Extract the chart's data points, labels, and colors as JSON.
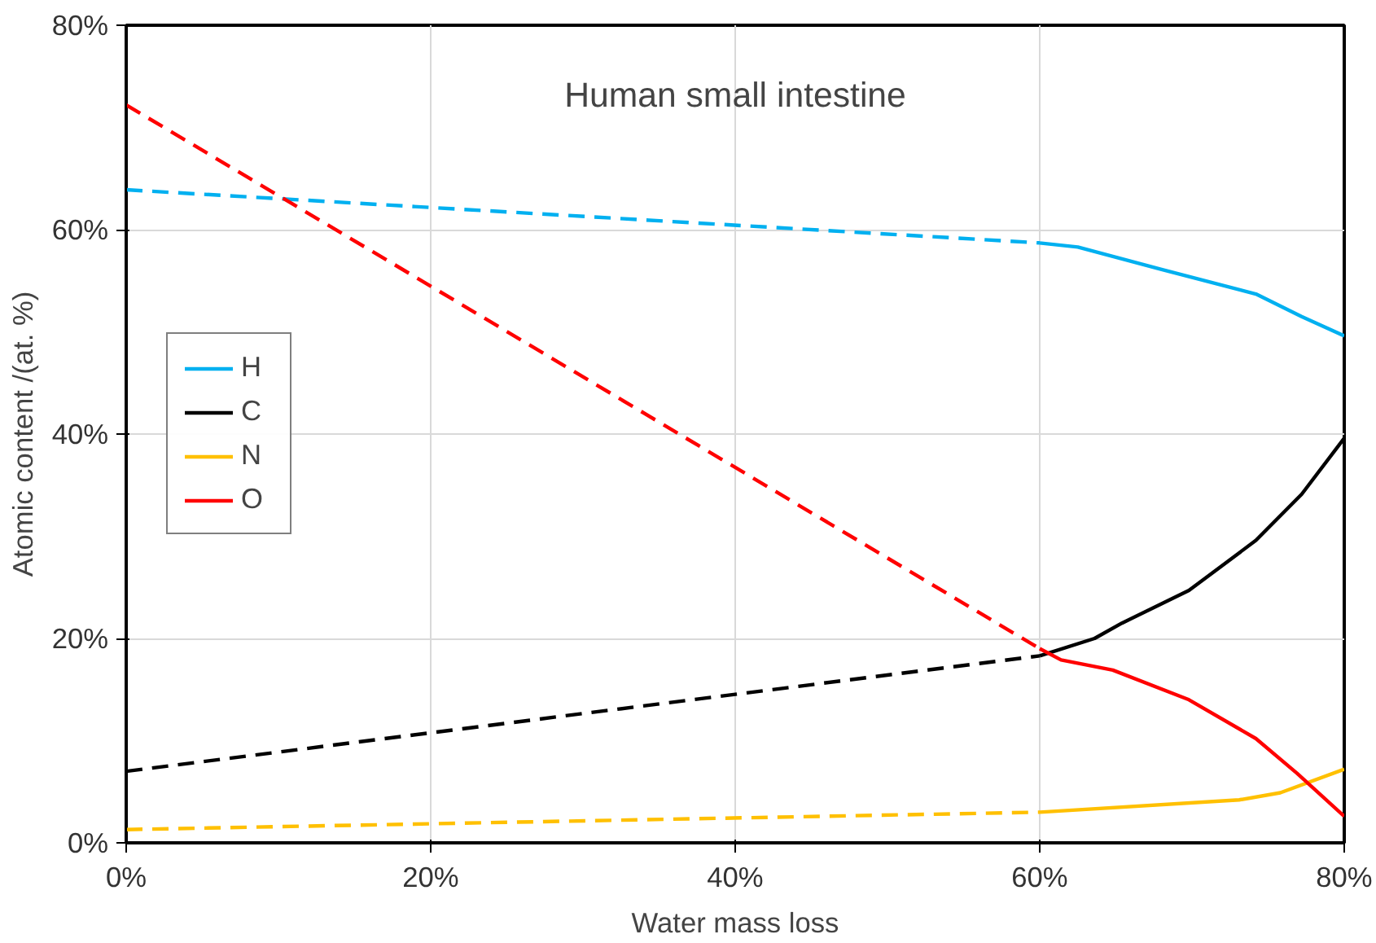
{
  "chart_data": {
    "type": "line",
    "title": "Human small intestine",
    "xlabel": "Water mass loss",
    "ylabel": "Atomic content /(at. %)",
    "xlim": [
      0,
      80
    ],
    "ylim": [
      0,
      80
    ],
    "xticks": [
      {
        "value": 0,
        "label": "0%"
      },
      {
        "value": 20,
        "label": "20%"
      },
      {
        "value": 40,
        "label": "40%"
      },
      {
        "value": 60,
        "label": "60%"
      },
      {
        "value": 80,
        "label": "80%"
      }
    ],
    "yticks": [
      {
        "value": 0,
        "label": "0%"
      },
      {
        "value": 20,
        "label": "20%"
      },
      {
        "value": 40,
        "label": "40%"
      },
      {
        "value": 60,
        "label": "60%"
      },
      {
        "value": 80,
        "label": "80%"
      }
    ],
    "grid": true,
    "legend": "left",
    "marker": "none",
    "series": [
      {
        "color": "#00b0f0",
        "line_style": "dashed",
        "x": [
          0,
          60
        ],
        "values": [
          63.9,
          58.7
        ]
      },
      {
        "color": "#000000",
        "line_style": "dashed",
        "x": [
          0,
          60
        ],
        "values": [
          7.0,
          18.3
        ]
      },
      {
        "color": "#ffc000",
        "line_style": "dashed",
        "x": [
          0,
          60
        ],
        "values": [
          1.3,
          3.0
        ]
      },
      {
        "color": "#ff0000",
        "line_style": "dashed",
        "x": [
          0,
          60
        ],
        "values": [
          72.2,
          19.0
        ]
      },
      {
        "name": "H",
        "color": "#00b0f0",
        "line_style": "solid",
        "x": [
          60,
          62.5,
          68,
          74.2,
          77.2,
          80
        ],
        "values": [
          58.7,
          58.3,
          56.1,
          53.7,
          51.5,
          49.6
        ]
      },
      {
        "name": "C",
        "color": "#000000",
        "line_style": "solid",
        "x": [
          60,
          63.6,
          65.4,
          69.8,
          74.2,
          77.2,
          80
        ],
        "values": [
          18.3,
          20.0,
          21.5,
          24.7,
          29.6,
          34.1,
          39.6
        ]
      },
      {
        "name": "N",
        "color": "#ffc000",
        "line_style": "solid",
        "x": [
          60,
          73.1,
          75.8,
          80
        ],
        "values": [
          3.0,
          4.2,
          4.9,
          7.2
        ]
      },
      {
        "name": "O",
        "color": "#ff0000",
        "line_style": "solid",
        "x": [
          60,
          61.4,
          64.8,
          69.8,
          74.2,
          76.9,
          80
        ],
        "values": [
          19.0,
          17.9,
          16.9,
          14.0,
          10.2,
          6.8,
          2.6
        ]
      }
    ]
  }
}
